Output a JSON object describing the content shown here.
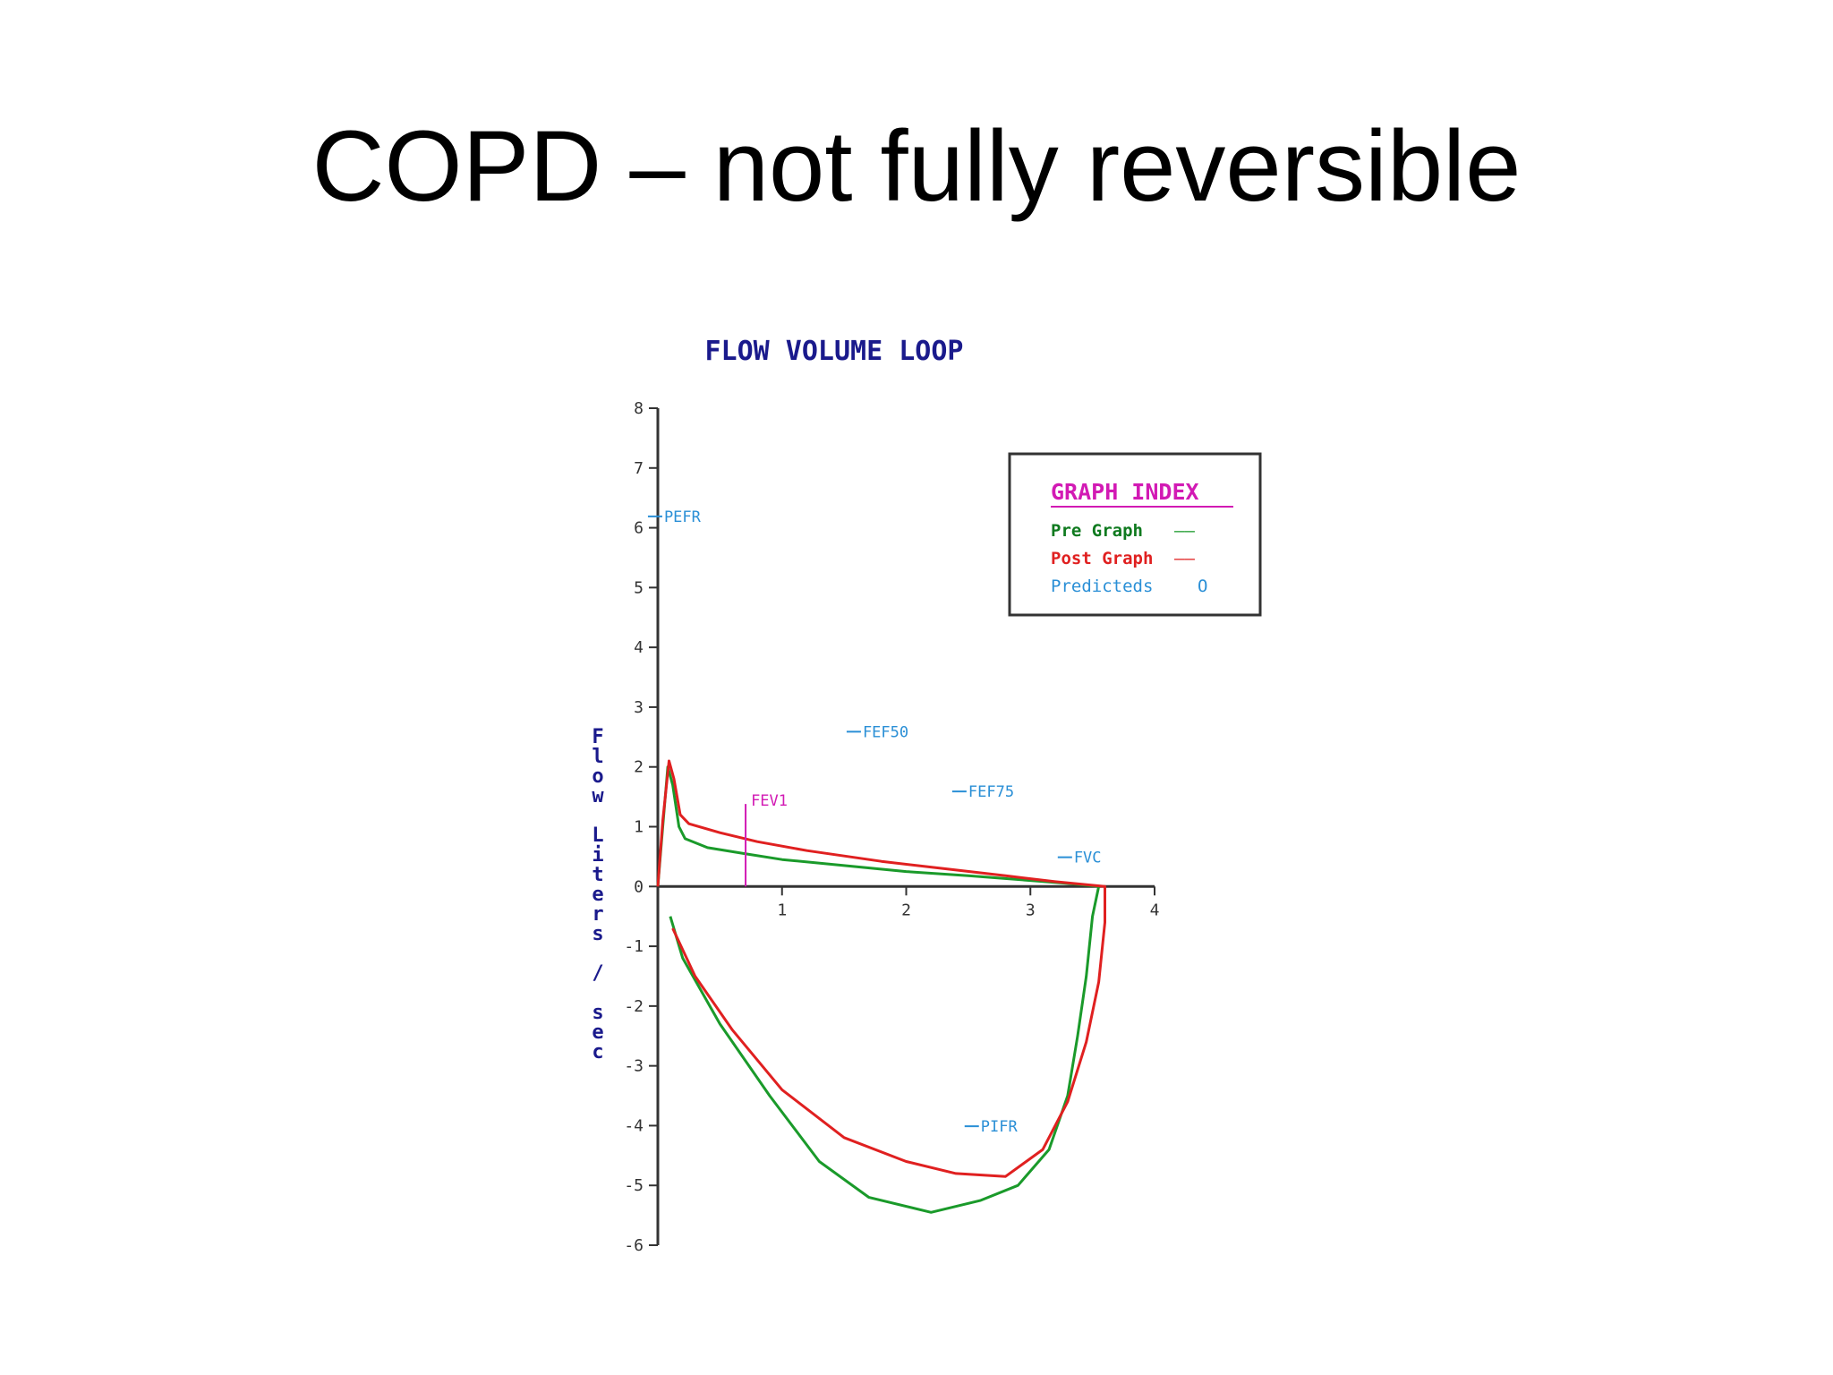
{
  "slide": {
    "title": "COPD – not fully reversible"
  },
  "chart_data": {
    "type": "line",
    "title": "FLOW VOLUME LOOP",
    "ylabel": "Flow Liters / sec",
    "xlabel": "",
    "xlim": [
      0,
      4
    ],
    "ylim": [
      -6,
      8
    ],
    "x_ticks": [
      "1",
      "2",
      "3",
      "4"
    ],
    "y_ticks": [
      "8",
      "7",
      "6",
      "5",
      "4",
      "3",
      "2",
      "1",
      "0",
      "-1",
      "-2",
      "-3",
      "-4",
      "-5",
      "-6"
    ],
    "legend": {
      "title": "GRAPH INDEX",
      "placement": "top-right",
      "entries": [
        {
          "label": "Pre Graph",
          "marker": "——"
        },
        {
          "label": "Post Graph",
          "marker": "——"
        },
        {
          "label": "Predicteds",
          "marker": "O"
        }
      ]
    },
    "annotations": [
      {
        "label": "PEFR",
        "x": 0.05,
        "y": 6.1
      },
      {
        "label": "FEF50",
        "x": 1.65,
        "y": 2.5
      },
      {
        "label": "FEF75",
        "x": 2.5,
        "y": 1.5
      },
      {
        "label": "FEV1",
        "x": 0.75,
        "y": 1.35
      },
      {
        "label": "FVC",
        "x": 3.35,
        "y": 0.4
      },
      {
        "label": "PIFR",
        "x": 2.6,
        "y": -4.1
      }
    ],
    "series": [
      {
        "name": "Pre Graph",
        "color": "#1a9a2a",
        "points": [
          [
            0,
            0
          ],
          [
            0.04,
            1.0
          ],
          [
            0.08,
            2.0
          ],
          [
            0.12,
            1.7
          ],
          [
            0.17,
            1.0
          ],
          [
            0.22,
            0.8
          ],
          [
            0.4,
            0.65
          ],
          [
            0.7,
            0.55
          ],
          [
            1.0,
            0.45
          ],
          [
            1.5,
            0.35
          ],
          [
            2.0,
            0.25
          ],
          [
            2.5,
            0.18
          ],
          [
            3.0,
            0.1
          ],
          [
            3.3,
            0.05
          ],
          [
            3.55,
            0.0
          ],
          [
            3.5,
            -0.5
          ],
          [
            3.45,
            -1.5
          ],
          [
            3.38,
            -2.5
          ],
          [
            3.3,
            -3.5
          ],
          [
            3.15,
            -4.4
          ],
          [
            2.9,
            -5.0
          ],
          [
            2.6,
            -5.25
          ],
          [
            2.2,
            -5.45
          ],
          [
            1.7,
            -5.2
          ],
          [
            1.3,
            -4.6
          ],
          [
            0.9,
            -3.5
          ],
          [
            0.5,
            -2.3
          ],
          [
            0.2,
            -1.2
          ],
          [
            0.1,
            -0.5
          ]
        ]
      },
      {
        "name": "Post Graph",
        "color": "#e02020",
        "points": [
          [
            0,
            0
          ],
          [
            0.04,
            1.1
          ],
          [
            0.09,
            2.1
          ],
          [
            0.13,
            1.8
          ],
          [
            0.18,
            1.2
          ],
          [
            0.25,
            1.05
          ],
          [
            0.5,
            0.9
          ],
          [
            0.8,
            0.75
          ],
          [
            1.2,
            0.6
          ],
          [
            1.8,
            0.42
          ],
          [
            2.3,
            0.3
          ],
          [
            2.8,
            0.18
          ],
          [
            3.2,
            0.08
          ],
          [
            3.6,
            0.0
          ],
          [
            3.6,
            -0.6
          ],
          [
            3.55,
            -1.6
          ],
          [
            3.45,
            -2.6
          ],
          [
            3.3,
            -3.6
          ],
          [
            3.1,
            -4.4
          ],
          [
            2.8,
            -4.85
          ],
          [
            2.4,
            -4.8
          ],
          [
            2.0,
            -4.6
          ],
          [
            1.5,
            -4.2
          ],
          [
            1.0,
            -3.4
          ],
          [
            0.6,
            -2.4
          ],
          [
            0.3,
            -1.5
          ],
          [
            0.12,
            -0.7
          ]
        ]
      }
    ]
  }
}
